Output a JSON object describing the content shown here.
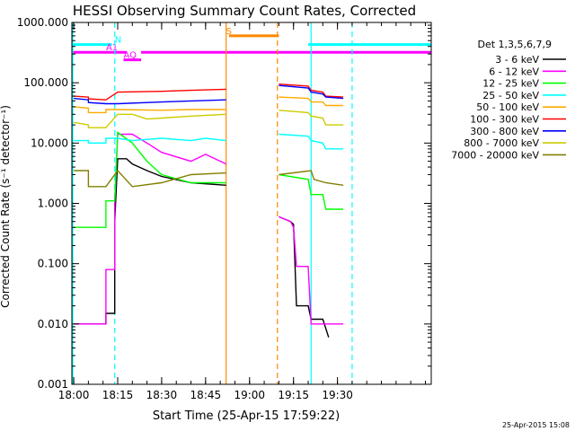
{
  "chart_data": {
    "type": "line",
    "title": "HESSI Observing Summary Count Rates, Corrected",
    "xlabel": "Start Time (25-Apr-15 17:59:22)",
    "ylabel": "Corrected Count Rate (s⁻¹ detector⁻¹)",
    "yscale": "log",
    "ylim": [
      0.001,
      1000
    ],
    "xlim": [
      "17:59:22",
      "20:02:00"
    ],
    "x_ticks": [
      "18:00",
      "18:15",
      "18:30",
      "18:45",
      "19:00",
      "19:15",
      "19:30"
    ],
    "y_ticks": [
      "1000.000",
      "100.000",
      "10.000",
      "1.000",
      "0.100",
      "0.010",
      "0.001"
    ],
    "legend_title": "Det 1,3,5,6,7,9",
    "legend_position": "right",
    "datestamp": "25-Apr-2015 15:08",
    "series": [
      {
        "name": "3 - 6 keV",
        "color": "#000000",
        "segments": [
          [
            [
              "18:00",
              0.01
            ],
            [
              "18:11",
              0.01
            ],
            [
              "18:11",
              0.015
            ],
            [
              "18:14",
              0.015
            ],
            [
              "18:14",
              0.5
            ],
            [
              "18:15",
              5.5
            ],
            [
              "18:18",
              5.5
            ],
            [
              "18:20",
              4.5
            ],
            [
              "18:25",
              3.5
            ],
            [
              "18:30",
              2.8
            ],
            [
              "18:40",
              2.2
            ],
            [
              "18:52",
              2.0
            ]
          ],
          [
            [
              "19:10",
              0.6
            ],
            [
              "19:14",
              0.5
            ],
            [
              "19:15",
              0.45
            ],
            [
              "19:16",
              0.02
            ],
            [
              "19:20",
              0.02
            ],
            [
              "19:21",
              0.012
            ],
            [
              "19:25",
              0.012
            ],
            [
              "19:27",
              0.006
            ]
          ]
        ]
      },
      {
        "name": "6 - 12 keV",
        "color": "#ff00ff",
        "segments": [
          [
            [
              "18:00",
              0.01
            ],
            [
              "18:11",
              0.01
            ],
            [
              "18:11",
              0.08
            ],
            [
              "18:14",
              0.08
            ],
            [
              "18:14",
              1.0
            ],
            [
              "18:15",
              14
            ],
            [
              "18:20",
              14
            ],
            [
              "18:25",
              10
            ],
            [
              "18:30",
              7
            ],
            [
              "18:40",
              5
            ],
            [
              "18:45",
              6.5
            ],
            [
              "18:52",
              4.5
            ]
          ],
          [
            [
              "19:10",
              0.6
            ],
            [
              "19:14",
              0.5
            ],
            [
              "19:15",
              0.4
            ],
            [
              "19:16",
              0.09
            ],
            [
              "19:20",
              0.09
            ],
            [
              "19:21",
              0.01
            ],
            [
              "19:32",
              0.01
            ]
          ]
        ]
      },
      {
        "name": "12 - 25 keV",
        "color": "#00ff00",
        "segments": [
          [
            [
              "18:00",
              0.4
            ],
            [
              "18:11",
              0.4
            ],
            [
              "18:11",
              1.1
            ],
            [
              "18:14",
              1.1
            ],
            [
              "18:15",
              15
            ],
            [
              "18:20",
              10
            ],
            [
              "18:25",
              5
            ],
            [
              "18:30",
              3
            ],
            [
              "18:40",
              2.2
            ],
            [
              "18:52",
              2.2
            ]
          ],
          [
            [
              "19:10",
              3
            ],
            [
              "19:20",
              2.5
            ],
            [
              "19:21",
              1.4
            ],
            [
              "19:25",
              1.4
            ],
            [
              "19:26",
              0.8
            ],
            [
              "19:32",
              0.8
            ]
          ]
        ]
      },
      {
        "name": "25 - 50 keV",
        "color": "#00ffff",
        "segments": [
          [
            [
              "18:00",
              11
            ],
            [
              "18:05",
              11
            ],
            [
              "18:05",
              10
            ],
            [
              "18:11",
              10
            ],
            [
              "18:11",
              12
            ],
            [
              "18:15",
              12
            ],
            [
              "18:20",
              11
            ],
            [
              "18:30",
              12
            ],
            [
              "18:40",
              11
            ],
            [
              "18:45",
              12
            ],
            [
              "18:52",
              11
            ]
          ],
          [
            [
              "19:10",
              14
            ],
            [
              "19:20",
              13
            ],
            [
              "19:21",
              11
            ],
            [
              "19:25",
              10
            ],
            [
              "19:26",
              8
            ],
            [
              "19:32",
              8
            ]
          ]
        ]
      },
      {
        "name": "50 - 100 keV",
        "color": "#ffaa00",
        "segments": [
          [
            [
              "18:00",
              40
            ],
            [
              "18:05",
              38
            ],
            [
              "18:05",
              32
            ],
            [
              "18:11",
              32
            ],
            [
              "18:11",
              36
            ],
            [
              "18:15",
              36
            ],
            [
              "18:30",
              35
            ],
            [
              "18:40",
              36
            ],
            [
              "18:52",
              36
            ]
          ],
          [
            [
              "19:10",
              58
            ],
            [
              "19:20",
              55
            ],
            [
              "19:21",
              48
            ],
            [
              "19:25",
              48
            ],
            [
              "19:26",
              42
            ],
            [
              "19:32",
              42
            ]
          ]
        ]
      },
      {
        "name": "100 - 300 keV",
        "color": "#ff0000",
        "segments": [
          [
            [
              "18:00",
              60
            ],
            [
              "18:05",
              58
            ],
            [
              "18:05",
              54
            ],
            [
              "18:11",
              52
            ],
            [
              "18:15",
              70
            ],
            [
              "18:30",
              72
            ],
            [
              "18:40",
              75
            ],
            [
              "18:52",
              78
            ]
          ],
          [
            [
              "19:10",
              95
            ],
            [
              "19:20",
              88
            ],
            [
              "19:21",
              75
            ],
            [
              "19:25",
              70
            ],
            [
              "19:26",
              60
            ],
            [
              "19:32",
              58
            ]
          ]
        ]
      },
      {
        "name": "300 - 800 keV",
        "color": "#0000ff",
        "segments": [
          [
            [
              "18:00",
              55
            ],
            [
              "18:05",
              52
            ],
            [
              "18:05",
              47
            ],
            [
              "18:11",
              45
            ],
            [
              "18:15",
              45
            ],
            [
              "18:30",
              48
            ],
            [
              "18:40",
              50
            ],
            [
              "18:52",
              52
            ]
          ],
          [
            [
              "19:10",
              90
            ],
            [
              "19:20",
              82
            ],
            [
              "19:21",
              70
            ],
            [
              "19:25",
              65
            ],
            [
              "19:26",
              58
            ],
            [
              "19:32",
              55
            ]
          ]
        ]
      },
      {
        "name": "800 - 7000 keV",
        "color": "#cccc00",
        "segments": [
          [
            [
              "18:00",
              22
            ],
            [
              "18:05",
              20
            ],
            [
              "18:05",
              18
            ],
            [
              "18:11",
              18
            ],
            [
              "18:15",
              30
            ],
            [
              "18:20",
              30
            ],
            [
              "18:25",
              25
            ],
            [
              "18:30",
              26
            ],
            [
              "18:40",
              28
            ],
            [
              "18:52",
              30
            ]
          ],
          [
            [
              "19:10",
              35
            ],
            [
              "19:20",
              32
            ],
            [
              "19:21",
              28
            ],
            [
              "19:25",
              26
            ],
            [
              "19:26",
              20
            ],
            [
              "19:32",
              20
            ]
          ]
        ]
      },
      {
        "name": "7000 - 20000 keV",
        "color": "#808000",
        "segments": [
          [
            [
              "18:00",
              3.5
            ],
            [
              "18:05",
              3.5
            ],
            [
              "18:05",
              1.9
            ],
            [
              "18:11",
              1.9
            ],
            [
              "18:15",
              3.5
            ],
            [
              "18:20",
              1.9
            ],
            [
              "18:30",
              2.2
            ],
            [
              "18:40",
              3.0
            ],
            [
              "18:52",
              3.2
            ]
          ],
          [
            [
              "19:10",
              3.0
            ],
            [
              "19:21",
              3.5
            ],
            [
              "19:22",
              2.5
            ],
            [
              "19:26",
              2.2
            ],
            [
              "19:32",
              2.0
            ]
          ]
        ]
      }
    ],
    "flag_bars": [
      {
        "label": "",
        "color": "#00ffff",
        "y": 430,
        "ranges": [
          [
            "17:59:22",
            "18:13"
          ],
          [
            "19:20",
            "20:02"
          ]
        ]
      },
      {
        "label": "N",
        "color": "#00ffff",
        "y": 430,
        "label_at": "18:14",
        "ranges": []
      },
      {
        "label": "A1",
        "color": "#ff00ff",
        "y": 320,
        "label_at": "18:11",
        "ranges": [
          [
            "17:59:22",
            "18:18"
          ],
          [
            "18:23",
            "20:02"
          ]
        ]
      },
      {
        "label": "AQ",
        "color": "#ff00ff",
        "y": 240,
        "label_at": "18:17",
        "ranges": [
          [
            "18:17",
            "18:23"
          ]
        ]
      },
      {
        "label": "S",
        "color": "#ff8800",
        "y": 600,
        "label_at": "18:52",
        "ranges": [
          [
            "18:53",
            "19:10"
          ]
        ]
      }
    ],
    "vertical_lines": [
      {
        "x": "17:59:40",
        "color": "#00ffff",
        "style": "solid"
      },
      {
        "x": "18:14:00",
        "color": "#00ffff",
        "style": "dashed"
      },
      {
        "x": "18:52:00",
        "color": "#ff8800",
        "style": "solid"
      },
      {
        "x": "19:09:30",
        "color": "#ff8800",
        "style": "dashed"
      },
      {
        "x": "19:21:00",
        "color": "#00ffff",
        "style": "solid"
      },
      {
        "x": "19:35:00",
        "color": "#00ffff",
        "style": "dashed"
      }
    ]
  }
}
